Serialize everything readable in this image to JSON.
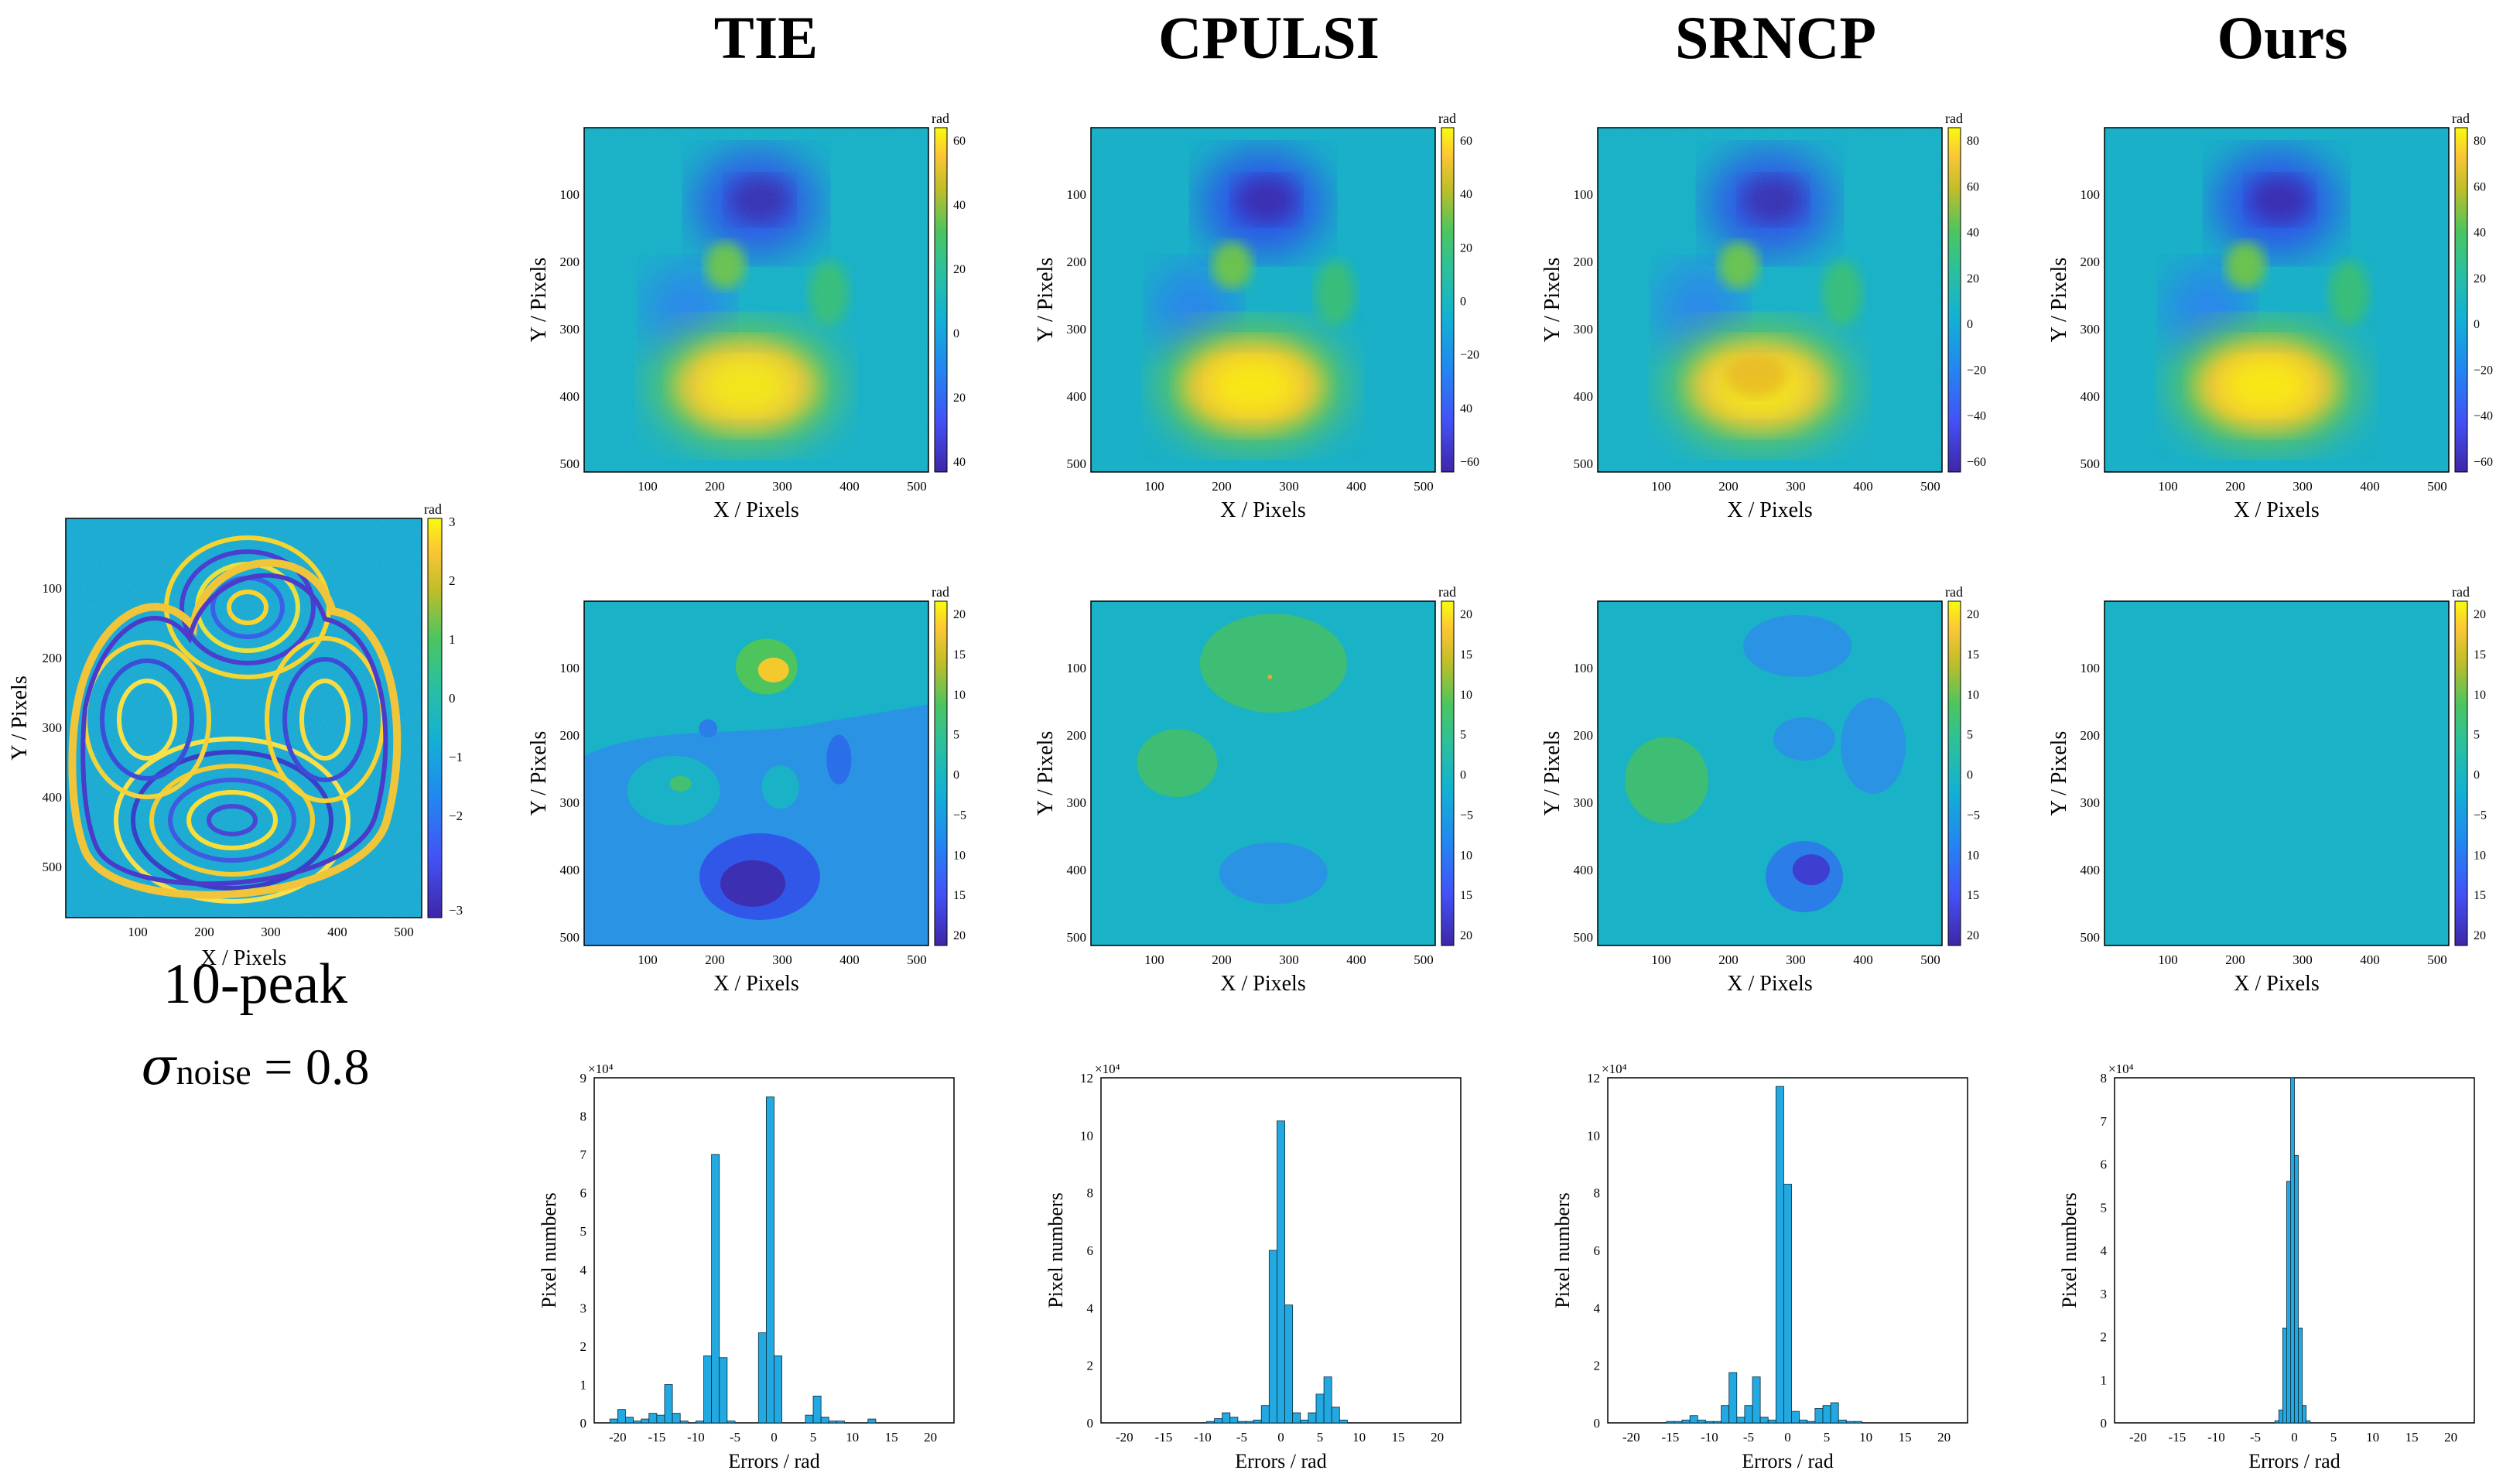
{
  "methods": [
    "TIE",
    "CPULSI",
    "SRNCP",
    "Ours"
  ],
  "caption": {
    "name": "10-peak",
    "sigma_symbol": "σ",
    "sigma_sub": "noise",
    "sigma_eq": " = 0.8"
  },
  "axes": {
    "x_label": "X / Pixels",
    "y_label": "Y / Pixels",
    "unit": "rad",
    "hist_x_label": "Errors / rad",
    "hist_y_label": "Pixel  numbers",
    "hist_scale": "×10⁴"
  },
  "wrapped": {
    "x_ticks": [
      "100",
      "200",
      "300",
      "400",
      "500"
    ],
    "y_ticks": [
      "100",
      "200",
      "300",
      "400",
      "500"
    ],
    "cb_ticks": [
      "3",
      "2",
      "1",
      "0",
      "−1",
      "−2",
      "−3"
    ]
  },
  "map_ticks": {
    "x": [
      "100",
      "200",
      "300",
      "400",
      "500"
    ],
    "y": [
      "100",
      "200",
      "300",
      "400",
      "500"
    ]
  },
  "unwrapped_colorbars": [
    [
      "60",
      "40",
      "20",
      "0",
      "20",
      "40"
    ],
    [
      "60",
      "40",
      "20",
      "0",
      "−20",
      "40",
      "−60"
    ],
    [
      "80",
      "60",
      "40",
      "20",
      "0",
      "−20",
      "−40",
      "−60"
    ],
    [
      "80",
      "60",
      "40",
      "20",
      "0",
      "−20",
      "−40",
      "−60"
    ]
  ],
  "error_colorbar": [
    "20",
    "15",
    "10",
    "5",
    "0",
    "−5",
    "10",
    "15",
    "20"
  ],
  "chart_data": [
    {
      "type": "bar",
      "title": "TIE",
      "xlabel": "Errors / rad",
      "ylabel": "Pixel  numbers",
      "xlim": [
        -23,
        23
      ],
      "ylim": [
        0,
        9
      ],
      "y_scale": "x10^4",
      "x_ticks": [
        "-20",
        "-15",
        "-10",
        "-5",
        "0",
        "5",
        "10",
        "15",
        "20"
      ],
      "y_ticks": [
        "0",
        "1",
        "2",
        "3",
        "4",
        "5",
        "6",
        "7",
        "8",
        "9"
      ],
      "bins": [
        -20.5,
        -19.5,
        -18.5,
        -17.5,
        -16.5,
        -15.5,
        -14.5,
        -13.5,
        -12.5,
        -11.5,
        -10.5,
        -9.5,
        -8.5,
        -7.5,
        -6.5,
        -5.5,
        -4.5,
        -3.5,
        -2.5,
        -1.5,
        -0.5,
        0.5,
        1.5,
        2.5,
        3.5,
        4.5,
        5.5,
        6.5,
        7.5,
        8.5,
        9.5,
        10.5,
        11.5,
        12.5,
        13.5
      ],
      "values": [
        0.1,
        0.35,
        0.15,
        0.05,
        0.1,
        0.25,
        0.2,
        1.0,
        0.25,
        0.05,
        0.0,
        0.05,
        1.75,
        7.0,
        1.7,
        0.05,
        0.0,
        0.0,
        0.0,
        2.35,
        8.5,
        1.75,
        0.0,
        0.0,
        0.0,
        0.2,
        0.7,
        0.15,
        0.05,
        0.05,
        0.0,
        0.0,
        0.0,
        0.1,
        0.0
      ]
    },
    {
      "type": "bar",
      "title": "CPULSI",
      "xlabel": "Errors / rad",
      "ylabel": "Pixel  numbers",
      "xlim": [
        -23,
        23
      ],
      "ylim": [
        0,
        12
      ],
      "y_scale": "x10^4",
      "x_ticks": [
        "-20",
        "-15",
        "-10",
        "-5",
        "0",
        "5",
        "10",
        "15",
        "20"
      ],
      "y_ticks": [
        "0",
        "2",
        "4",
        "6",
        "8",
        "10",
        "12"
      ],
      "bins": [
        -9,
        -8,
        -7,
        -6,
        -5,
        -4,
        -3,
        -2,
        -1,
        0,
        1,
        2,
        3,
        4,
        5,
        6,
        7,
        8
      ],
      "values": [
        0.05,
        0.15,
        0.35,
        0.2,
        0.05,
        0.05,
        0.1,
        0.6,
        6.0,
        10.5,
        4.1,
        0.35,
        0.1,
        0.35,
        1.0,
        1.6,
        0.55,
        0.1
      ]
    },
    {
      "type": "bar",
      "title": "SRNCP",
      "xlabel": "Errors / rad",
      "ylabel": "Pixel  numbers",
      "xlim": [
        -23,
        23
      ],
      "ylim": [
        0,
        12
      ],
      "y_scale": "x10^4",
      "x_ticks": [
        "-20",
        "-15",
        "-10",
        "-5",
        "0",
        "5",
        "10",
        "15",
        "20"
      ],
      "y_ticks": [
        "0",
        "2",
        "4",
        "6",
        "8",
        "10",
        "12"
      ],
      "bins": [
        -15,
        -14,
        -13,
        -12,
        -11,
        -10,
        -9,
        -8,
        -7,
        -6,
        -5,
        -4,
        -3,
        -2,
        -1,
        0,
        1,
        2,
        3,
        4,
        5,
        6,
        7,
        8,
        9
      ],
      "values": [
        0.05,
        0.05,
        0.1,
        0.25,
        0.1,
        0.05,
        0.05,
        0.6,
        1.75,
        0.2,
        0.6,
        1.6,
        0.2,
        0.1,
        11.7,
        8.3,
        0.4,
        0.1,
        0.05,
        0.5,
        0.6,
        0.7,
        0.1,
        0.05,
        0.05
      ]
    },
    {
      "type": "bar",
      "title": "Ours",
      "xlabel": "Errors / rad",
      "ylabel": "Pixel  numbers",
      "xlim": [
        -23,
        23
      ],
      "ylim": [
        0,
        8
      ],
      "y_scale": "x10^4",
      "x_ticks": [
        "-20",
        "-15",
        "-10",
        "-5",
        "0",
        "5",
        "10",
        "15",
        "20"
      ],
      "y_ticks": [
        "0",
        "1",
        "2",
        "3",
        "4",
        "5",
        "6",
        "7",
        "8"
      ],
      "bins": [
        -2.25,
        -1.75,
        -1.25,
        -0.75,
        -0.25,
        0.25,
        0.75,
        1.25,
        1.75
      ],
      "values": [
        0.05,
        0.3,
        2.2,
        5.6,
        8.0,
        6.2,
        2.2,
        0.4,
        0.05
      ]
    }
  ]
}
